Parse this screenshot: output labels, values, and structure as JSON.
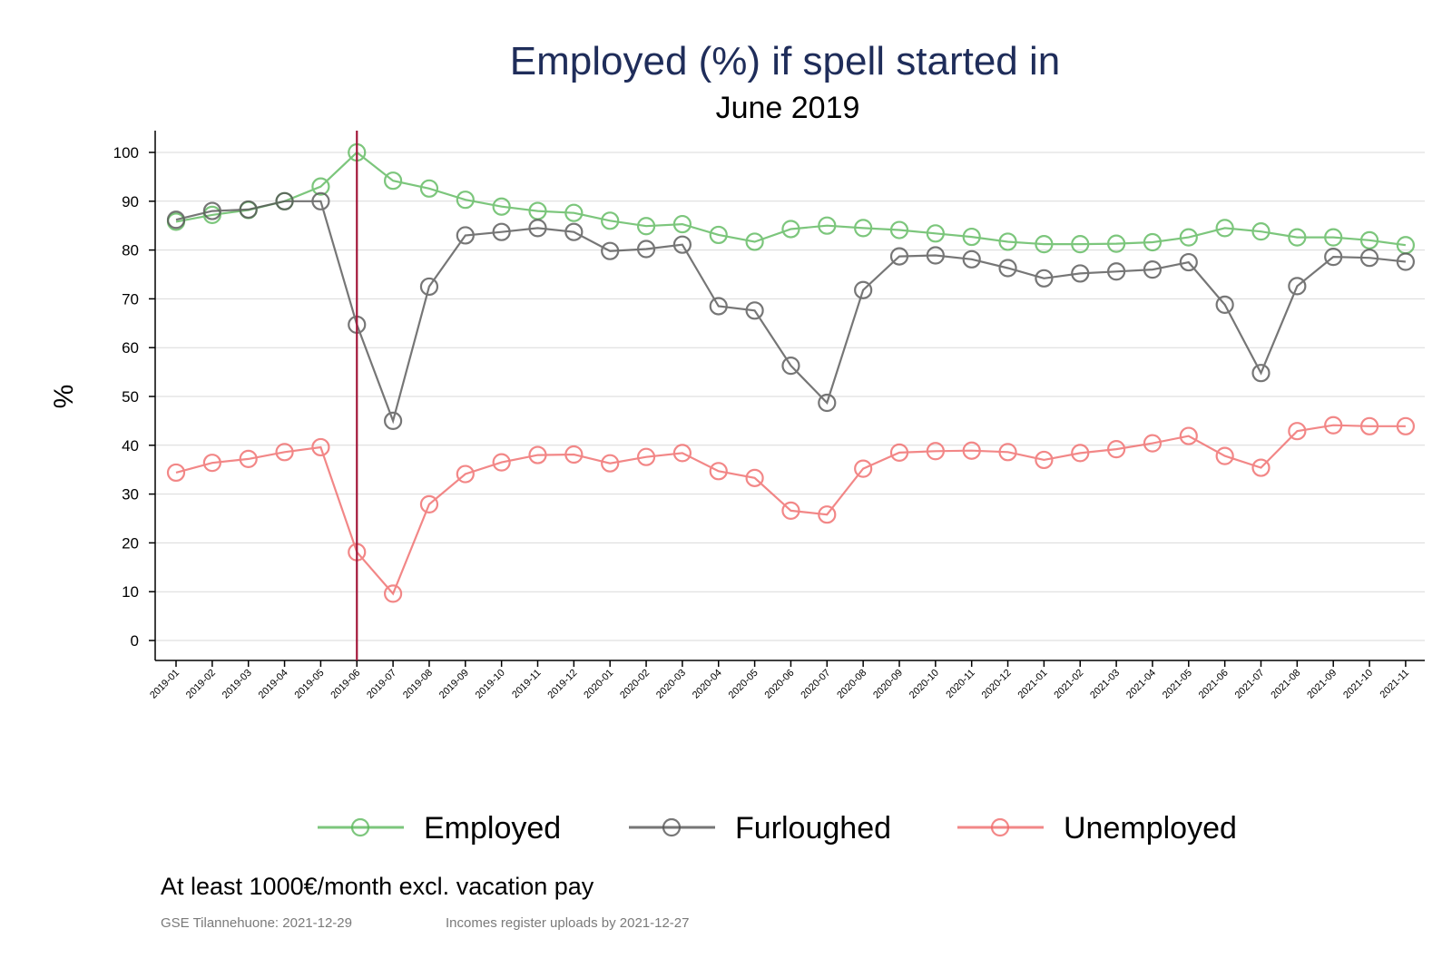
{
  "chart_data": {
    "type": "line",
    "title": "Employed (%) if spell started in",
    "subtitle": "June 2019",
    "ylabel": "%",
    "xlabel": "",
    "ylim": [
      -4,
      104
    ],
    "yticks": [
      0,
      10,
      20,
      30,
      40,
      50,
      60,
      70,
      80,
      90,
      100
    ],
    "grid": "horizontal",
    "marker_line_at": "2019-06",
    "marker_line_color": "#a3173a",
    "legend_position": "bottom",
    "categories": [
      "2019-01",
      "2019-02",
      "2019-03",
      "2019-04",
      "2019-05",
      "2019-06",
      "2019-07",
      "2019-08",
      "2019-09",
      "2019-10",
      "2019-11",
      "2019-12",
      "2020-01",
      "2020-02",
      "2020-03",
      "2020-04",
      "2020-05",
      "2020-06",
      "2020-07",
      "2020-08",
      "2020-09",
      "2020-10",
      "2020-11",
      "2020-12",
      "2021-01",
      "2021-02",
      "2021-03",
      "2021-04",
      "2021-05",
      "2021-06",
      "2021-07",
      "2021-08",
      "2021-09",
      "2021-10",
      "2021-11"
    ],
    "series": [
      {
        "name": "Employed",
        "color": "#5cb85c",
        "values": [
          85.8,
          87.2,
          88.2,
          90.0,
          93.0,
          100.0,
          94.2,
          92.6,
          90.3,
          88.9,
          88.0,
          87.6,
          86.0,
          84.9,
          85.3,
          83.1,
          81.7,
          84.3,
          85.0,
          84.5,
          84.1,
          83.4,
          82.7,
          81.7,
          81.2,
          81.2,
          81.3,
          81.6,
          82.6,
          84.5,
          83.8,
          82.6,
          82.6,
          82.0,
          81.0
        ]
      },
      {
        "name": "Furloughed",
        "color": "#555555",
        "values": [
          86.2,
          88.0,
          88.3,
          90.0,
          90.0,
          64.7,
          45.0,
          72.5,
          83.0,
          83.7,
          84.5,
          83.7,
          79.8,
          80.2,
          81.1,
          68.5,
          67.6,
          56.3,
          48.7,
          71.8,
          78.7,
          78.9,
          78.1,
          76.3,
          74.2,
          75.2,
          75.6,
          76.0,
          77.5,
          68.8,
          54.8,
          72.6,
          78.6,
          78.4,
          77.6
        ]
      },
      {
        "name": "Unemployed",
        "color": "#f06a6a",
        "values": [
          34.4,
          36.4,
          37.2,
          38.6,
          39.6,
          18.1,
          9.6,
          27.9,
          34.1,
          36.5,
          38.0,
          38.1,
          36.3,
          37.6,
          38.4,
          34.7,
          33.3,
          26.6,
          25.8,
          35.2,
          38.5,
          38.8,
          38.9,
          38.6,
          37.0,
          38.4,
          39.2,
          40.4,
          41.9,
          37.8,
          35.4,
          42.9,
          44.1,
          43.9,
          43.9
        ]
      }
    ]
  },
  "footnote": "At least 1000€/month excl. vacation pay",
  "source_left": "GSE Tilannehuone: 2021-12-29",
  "source_right": "Incomes register uploads by 2021-12-27"
}
